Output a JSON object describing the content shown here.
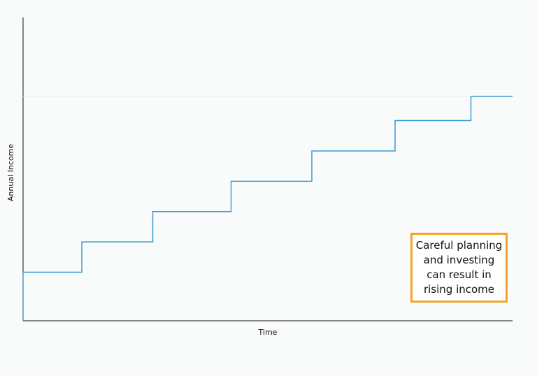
{
  "chart_data": {
    "type": "line",
    "step": true,
    "title": "",
    "xlabel": "Time",
    "ylabel": "Annual Income",
    "x": [
      0,
      12,
      26.5,
      42.5,
      59,
      76,
      91.5,
      100
    ],
    "y": [
      16,
      26,
      36,
      46,
      56,
      66,
      74,
      74
    ],
    "xlim": [
      0,
      100
    ],
    "ylim": [
      0,
      100
    ],
    "line_color": "#3a9bd5",
    "grid": false,
    "annotation": {
      "lines": [
        "Careful planning",
        "and investing",
        "can result in",
        "rising income"
      ],
      "border_color": "#f0a52a"
    }
  }
}
